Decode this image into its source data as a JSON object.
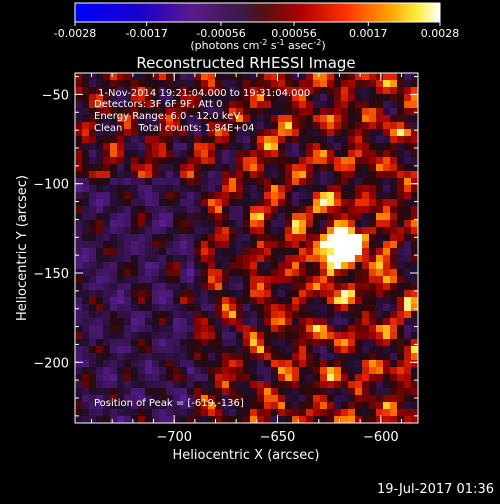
{
  "colorbar": {
    "ticks": [
      "-0.0028",
      "-0.0017",
      "-0.00056",
      "0.00056",
      "0.0017",
      "0.0028"
    ],
    "tick_values": [
      -0.0028,
      -0.0017,
      -0.00056,
      0.00056,
      0.0017,
      0.0028
    ],
    "range": [
      -0.0028,
      0.0028
    ],
    "units_base": "(photons cm",
    "units_exp1": "-2",
    "units_mid": " s",
    "units_exp2": "-1",
    "units_mid2": " asec",
    "units_exp3": "-2",
    "units_end": ")"
  },
  "chart_data": {
    "type": "heatmap",
    "title": "Reconstructed RHESSI Image",
    "xlabel": "Heliocentric X (arcsec)",
    "ylabel": "Heliocentric Y (arcsec)",
    "xlim": [
      -748,
      -582
    ],
    "ylim": [
      -234,
      -38
    ],
    "xticks": [
      -700,
      -650,
      -600
    ],
    "yticks": [
      -50,
      -100,
      -150,
      -200
    ],
    "xtick_labels": [
      "−700",
      "−650",
      "−600"
    ],
    "ytick_labels": [
      "−50",
      "−100",
      "−150",
      "−200"
    ],
    "colormap": "purple-red-yellow-white",
    "peak": [
      -619,
      -136
    ],
    "annotations": {
      "time": "1-Nov-2014 19:21:04.000 to 19:31:04.000",
      "detectors": "Detectors: 3F 6F 9F, Att 0",
      "energy": "Energy Range: 6.0 - 12.0 keV",
      "clean": "Clean     Total counts: 1.84E+04",
      "peak_text": "Position of Peak = [-619,-136]"
    }
  },
  "footer": {
    "date": "19-Jul-2017 01:36"
  }
}
